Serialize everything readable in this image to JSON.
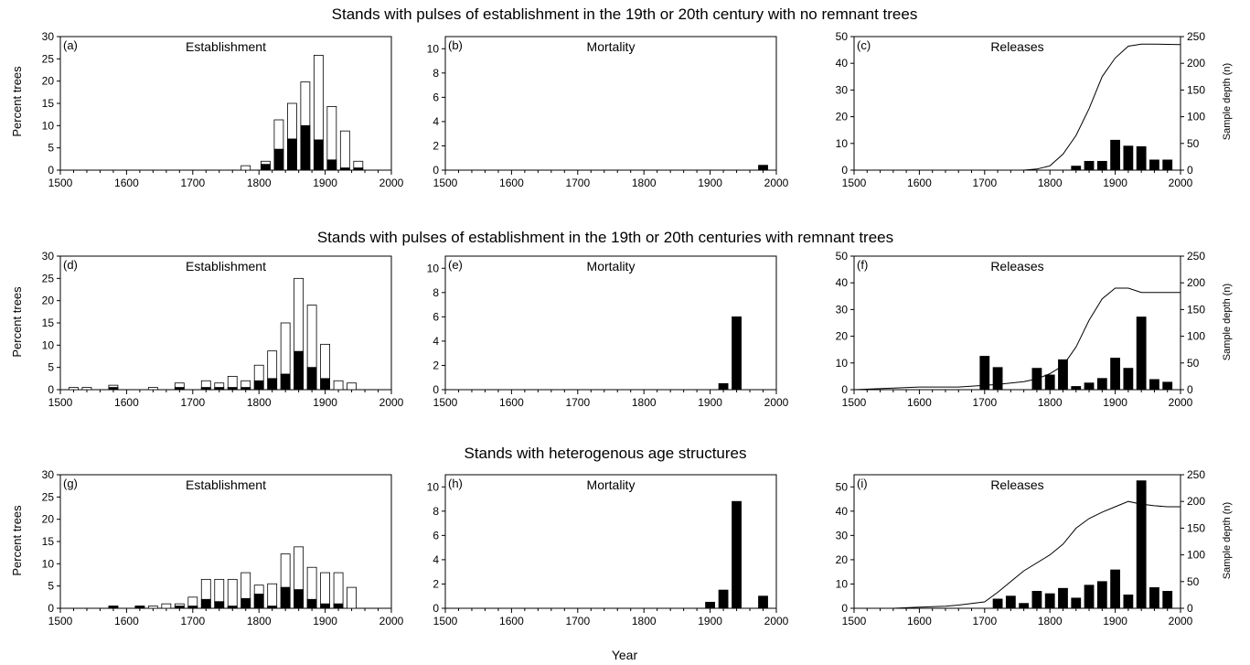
{
  "row_titles": [
    "Stands with pulses of establishment in the 19th or 20th century with no remnant trees",
    "Stands with pulses of establishment in the 19th or 20th centuries with remnant trees",
    "Stands with heterogenous age structures"
  ],
  "x_axis_label": "Year",
  "y_axis_label_left": "Percent trees",
  "y_axis_label_right": "Sample depth (n)",
  "colors": {
    "filled": "#000000",
    "open": "#ffffff",
    "stroke": "#000000"
  },
  "chart_data": [
    {
      "id": "a",
      "panel_label": "(a)",
      "title": "Establishment",
      "type": "bar",
      "xlim": [
        1500,
        2000
      ],
      "xticks": [
        1500,
        1600,
        1700,
        1800,
        1900,
        2000
      ],
      "ylim": [
        0,
        30
      ],
      "yticks": [
        0,
        5,
        10,
        15,
        20,
        25,
        30
      ],
      "x": [
        1780,
        1810,
        1820,
        1830,
        1840,
        1850,
        1860,
        1870,
        1880,
        1890,
        1900,
        1910,
        1920,
        1930,
        1940,
        1950
      ],
      "series": [
        {
          "style": "open",
          "values": [
            1,
            2,
            0,
            11.3,
            0,
            15,
            0,
            19.8,
            0,
            25.8,
            0,
            14.3,
            0,
            8.8,
            0,
            2
          ]
        },
        {
          "style": "filled",
          "values": [
            0,
            1.3,
            0,
            4.7,
            0,
            7,
            0,
            10,
            0,
            6.8,
            0,
            2.3,
            0,
            0.5,
            0,
            0.5
          ]
        }
      ]
    },
    {
      "id": "b",
      "panel_label": "(b)",
      "title": "Mortality",
      "type": "bar",
      "xlim": [
        1500,
        2000
      ],
      "xticks": [
        1500,
        1600,
        1700,
        1800,
        1900,
        2000
      ],
      "ylim": [
        0,
        11
      ],
      "yticks": [
        0,
        2,
        4,
        6,
        8,
        10
      ],
      "x": [
        1980
      ],
      "series": [
        {
          "style": "filled",
          "values": [
            0.4
          ]
        }
      ]
    },
    {
      "id": "c",
      "panel_label": "(c)",
      "title": "Releases",
      "type": "bar",
      "xlim": [
        1500,
        2000
      ],
      "xticks": [
        1500,
        1600,
        1700,
        1800,
        1900,
        2000
      ],
      "ylim": [
        0,
        50
      ],
      "yticks": [
        0,
        10,
        20,
        30,
        40,
        50
      ],
      "y2lim": [
        0,
        250
      ],
      "y2ticks": [
        0,
        50,
        100,
        150,
        200,
        250
      ],
      "x": [
        1840,
        1860,
        1880,
        1900,
        1920,
        1940,
        1960,
        1980
      ],
      "series": [
        {
          "style": "filled",
          "values": [
            1.5,
            3.3,
            3.3,
            11.2,
            9,
            8.8,
            3.8,
            3.8
          ]
        }
      ],
      "line": {
        "x": [
          1500,
          1700,
          1760,
          1780,
          1800,
          1820,
          1840,
          1860,
          1880,
          1900,
          1920,
          1940,
          1960,
          2000
        ],
        "y": [
          0,
          0,
          0,
          2,
          8,
          30,
          65,
          115,
          175,
          210,
          232,
          236,
          236,
          235
        ]
      }
    },
    {
      "id": "d",
      "panel_label": "(d)",
      "title": "Establishment",
      "type": "bar",
      "xlim": [
        1500,
        2000
      ],
      "xticks": [
        1500,
        1600,
        1700,
        1800,
        1900,
        2000
      ],
      "ylim": [
        0,
        30
      ],
      "yticks": [
        0,
        5,
        10,
        15,
        20,
        25,
        30
      ],
      "x": [
        1520,
        1540,
        1580,
        1640,
        1680,
        1720,
        1740,
        1760,
        1780,
        1800,
        1820,
        1840,
        1860,
        1880,
        1900,
        1920,
        1940
      ],
      "series": [
        {
          "style": "open",
          "values": [
            0.5,
            0.5,
            1,
            0.5,
            1.5,
            2,
            1.5,
            3,
            2,
            5.5,
            8.7,
            15,
            25,
            19,
            10.2,
            2,
            1.5
          ]
        },
        {
          "style": "filled",
          "values": [
            0,
            0,
            0.5,
            0,
            0.5,
            0.5,
            0.5,
            0.5,
            0.5,
            2,
            2.5,
            3.5,
            8.6,
            5,
            2.5,
            0,
            0
          ]
        }
      ]
    },
    {
      "id": "e",
      "panel_label": "(e)",
      "title": "Mortality",
      "type": "bar",
      "xlim": [
        1500,
        2000
      ],
      "xticks": [
        1500,
        1600,
        1700,
        1800,
        1900,
        2000
      ],
      "ylim": [
        0,
        11
      ],
      "yticks": [
        0,
        2,
        4,
        6,
        8,
        10
      ],
      "x": [
        1920,
        1940
      ],
      "series": [
        {
          "style": "filled",
          "values": [
            0.5,
            6
          ]
        }
      ]
    },
    {
      "id": "f",
      "panel_label": "(f)",
      "title": "Releases",
      "type": "bar",
      "xlim": [
        1500,
        2000
      ],
      "xticks": [
        1500,
        1600,
        1700,
        1800,
        1900,
        2000
      ],
      "ylim": [
        0,
        50
      ],
      "yticks": [
        0,
        10,
        20,
        30,
        40,
        50
      ],
      "y2lim": [
        0,
        250
      ],
      "y2ticks": [
        0,
        50,
        100,
        150,
        200,
        250
      ],
      "x": [
        1700,
        1720,
        1780,
        1800,
        1820,
        1840,
        1860,
        1880,
        1900,
        1920,
        1940,
        1960,
        1980
      ],
      "series": [
        {
          "style": "filled",
          "values": [
            12.5,
            8.3,
            8,
            5.5,
            11.2,
            1.2,
            2.5,
            4.2,
            11.8,
            8,
            27.2,
            3.8,
            2.8
          ]
        }
      ],
      "line": {
        "x": [
          1500,
          1600,
          1660,
          1700,
          1720,
          1760,
          1780,
          1800,
          1820,
          1840,
          1860,
          1880,
          1900,
          1920,
          1940,
          2000
        ],
        "y": [
          0,
          5,
          5,
          8,
          10,
          15,
          20,
          30,
          45,
          80,
          130,
          170,
          190,
          190,
          182,
          182
        ]
      }
    },
    {
      "id": "g",
      "panel_label": "(g)",
      "title": "Establishment",
      "type": "bar",
      "xlim": [
        1500,
        2000
      ],
      "xticks": [
        1500,
        1600,
        1700,
        1800,
        1900,
        2000
      ],
      "ylim": [
        0,
        30
      ],
      "yticks": [
        0,
        5,
        10,
        15,
        20,
        25,
        30
      ],
      "x": [
        1580,
        1620,
        1640,
        1660,
        1680,
        1700,
        1720,
        1740,
        1760,
        1780,
        1800,
        1820,
        1840,
        1860,
        1880,
        1900,
        1920,
        1940
      ],
      "series": [
        {
          "style": "open",
          "values": [
            0.5,
            0.5,
            0.5,
            1,
            1,
            2.5,
            6.5,
            6.5,
            6.5,
            8,
            5.2,
            5.5,
            12.2,
            13.8,
            9.2,
            8,
            8,
            4.7
          ]
        },
        {
          "style": "filled",
          "values": [
            0.5,
            0.5,
            0,
            0,
            0.5,
            0.5,
            2,
            1.5,
            0.5,
            2.2,
            3.2,
            0.5,
            4.7,
            4.2,
            2,
            1,
            1,
            0
          ]
        }
      ]
    },
    {
      "id": "h",
      "panel_label": "(h)",
      "title": "Mortality",
      "type": "bar",
      "xlim": [
        1500,
        2000
      ],
      "xticks": [
        1500,
        1600,
        1700,
        1800,
        1900,
        2000
      ],
      "ylim": [
        0,
        11
      ],
      "yticks": [
        0,
        2,
        4,
        6,
        8,
        10
      ],
      "x": [
        1900,
        1920,
        1940,
        1980
      ],
      "series": [
        {
          "style": "filled",
          "values": [
            0.5,
            1.5,
            8.8,
            1
          ]
        }
      ]
    },
    {
      "id": "i",
      "panel_label": "(i)",
      "title": "Releases",
      "type": "bar",
      "xlim": [
        1500,
        2000
      ],
      "xticks": [
        1500,
        1600,
        1700,
        1800,
        1900,
        2000
      ],
      "ylim": [
        0,
        55
      ],
      "yticks": [
        0,
        10,
        20,
        30,
        40,
        50
      ],
      "y2lim": [
        0,
        250
      ],
      "y2ticks": [
        0,
        50,
        100,
        150,
        200,
        250
      ],
      "x": [
        1720,
        1740,
        1760,
        1780,
        1800,
        1820,
        1840,
        1860,
        1880,
        1900,
        1920,
        1940,
        1960,
        1980
      ],
      "series": [
        {
          "style": "filled",
          "values": [
            3.8,
            5,
            2,
            7,
            6,
            8.2,
            4.2,
            9.5,
            11,
            15.8,
            5.5,
            52.5,
            8.5,
            7
          ]
        }
      ],
      "line": {
        "x": [
          1560,
          1600,
          1640,
          1660,
          1700,
          1720,
          1760,
          1800,
          1820,
          1840,
          1860,
          1880,
          1900,
          1920,
          1940,
          1960,
          1980,
          2000
        ],
        "y": [
          0,
          2,
          4,
          6,
          12,
          30,
          70,
          100,
          120,
          150,
          168,
          180,
          190,
          200,
          195,
          192,
          190,
          190
        ]
      }
    }
  ]
}
